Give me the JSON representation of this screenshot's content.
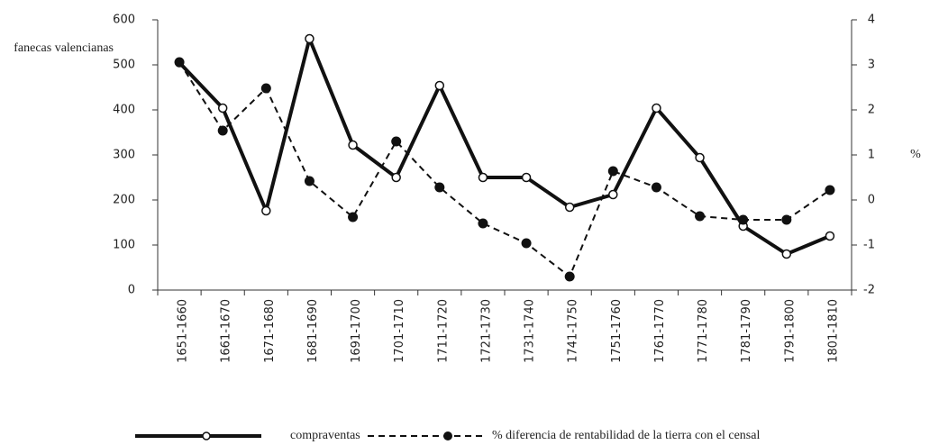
{
  "chart_data": {
    "type": "line",
    "ylabel": "fanecas valencianas",
    "y2label": "%",
    "categories": [
      "1651-1660",
      "1661-1670",
      "1671-1680",
      "1681-1690",
      "1691-1700",
      "1701-1710",
      "1711-1720",
      "1721-1730",
      "1731-1740",
      "1741-1750",
      "1751-1760",
      "1761-1770",
      "1771-1780",
      "1781-1790",
      "1791-1800",
      "1801-1810"
    ],
    "series": [
      {
        "name": "compraventas",
        "color": "#111111",
        "style": "solid",
        "marker": "open",
        "values": [
          505,
          404,
          176,
          558,
          322,
          250,
          454,
          250,
          250,
          184,
          212,
          404,
          294,
          142,
          80,
          120
        ]
      },
      {
        "name": "% diferencia de rentabilidad de la tierra con el censal",
        "color": "#111111",
        "style": "dashed",
        "marker": "filled",
        "axis": "y2",
        "values": [
          3.06,
          1.54,
          2.48,
          0.42,
          -0.38,
          1.3,
          0.28,
          -0.52,
          -0.96,
          -1.7,
          0.64,
          0.28,
          -0.36,
          -0.44,
          -0.44,
          0.22
        ]
      }
    ],
    "ylim": [
      0,
      600
    ],
    "yticks": [
      0,
      100,
      200,
      300,
      400,
      500,
      600
    ],
    "y2lim": [
      -2,
      4
    ],
    "y2ticks": [
      -2,
      -1,
      0,
      1,
      2,
      3,
      4
    ]
  }
}
